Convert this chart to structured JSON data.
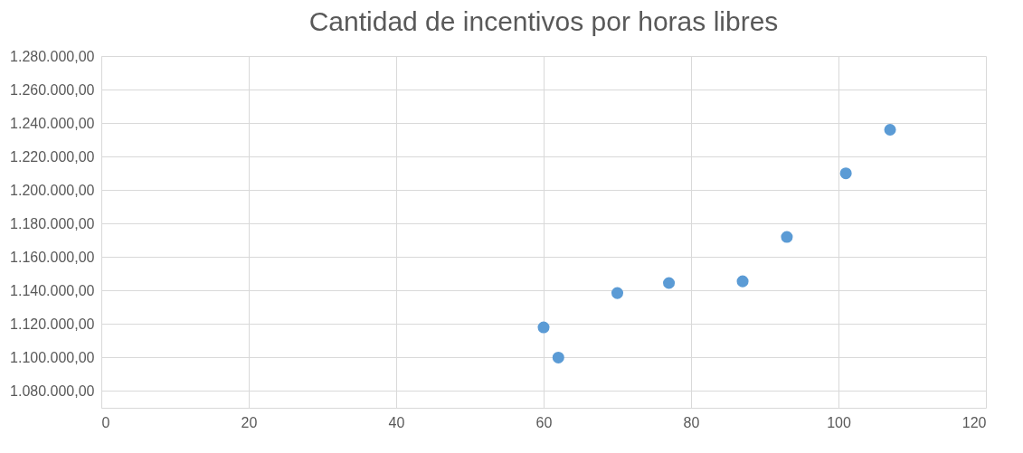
{
  "chart_data": {
    "type": "scatter",
    "title": "Cantidad de incentivos por horas libres",
    "series": [
      {
        "color": "#5b9bd5",
        "x": [
          60,
          62,
          70,
          77,
          87,
          93,
          101,
          107
        ],
        "values": [
          1118000,
          1100000,
          1138500,
          1144500,
          1145500,
          1172000,
          1210000,
          1236000
        ]
      }
    ],
    "xlim": [
      0,
      120
    ],
    "xticks": [
      0,
      20,
      40,
      60,
      80,
      100,
      120
    ],
    "ylim": [
      1070000,
      1280000
    ],
    "yticks": [
      {
        "value": 1080000,
        "label": "1.080.000,00"
      },
      {
        "value": 1100000,
        "label": "1.100.000,00"
      },
      {
        "value": 1120000,
        "label": "1.120.000,00"
      },
      {
        "value": 1140000,
        "label": "1.140.000,00"
      },
      {
        "value": 1160000,
        "label": "1.160.000,00"
      },
      {
        "value": 1180000,
        "label": "1.180.000,00"
      },
      {
        "value": 1200000,
        "label": "1.200.000,00"
      },
      {
        "value": 1220000,
        "label": "1.220.000,00"
      },
      {
        "value": 1240000,
        "label": "1.240.000,00"
      },
      {
        "value": 1260000,
        "label": "1.260.000,00"
      },
      {
        "value": 1280000,
        "label": "1.280.000,00"
      }
    ],
    "grid": true,
    "marker": "circle"
  }
}
